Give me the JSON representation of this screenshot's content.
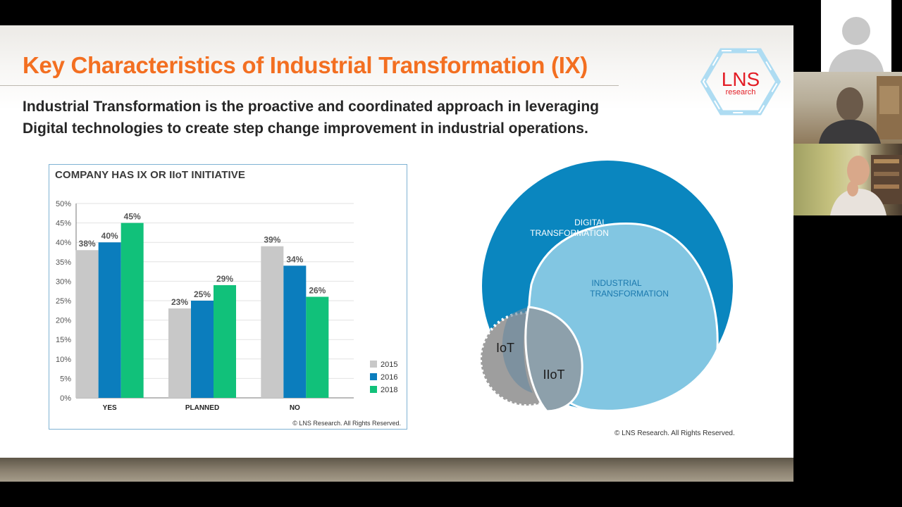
{
  "slide": {
    "title": "Key Characteristics of Industrial Transformation (IX)",
    "subtitle_line1": "Industrial Transformation is the proactive and coordinated approach in leveraging",
    "subtitle_line2": "Digital technologies to create step change improvement in industrial operations.",
    "logo": {
      "name": "LNS",
      "tagline": "research",
      "color": "#e31e26",
      "hex_color": "#aedcf2"
    }
  },
  "chart_data": {
    "type": "bar",
    "title": "COMPANY HAS IX OR IIoT INITIATIVE",
    "categories": [
      "YES",
      "PLANNED",
      "NO"
    ],
    "series": [
      {
        "name": "2015",
        "color": "#c8c8c8",
        "values": [
          38,
          23,
          39
        ],
        "labels": [
          "38%",
          "23%",
          "39%"
        ]
      },
      {
        "name": "2016",
        "color": "#0b7dbd",
        "values": [
          40,
          25,
          34
        ],
        "labels": [
          "40%",
          "25%",
          "34%"
        ]
      },
      {
        "name": "2018",
        "color": "#11c17a",
        "values": [
          45,
          29,
          26
        ],
        "labels": [
          "45%",
          "29%",
          "26%"
        ]
      }
    ],
    "ylim": [
      0,
      50
    ],
    "yticks": [
      "0%",
      "5%",
      "10%",
      "15%",
      "20%",
      "25%",
      "30%",
      "35%",
      "40%",
      "45%",
      "50%"
    ],
    "legend": "right",
    "grid": true,
    "copyright": "© LNS Research. All Rights Reserved."
  },
  "venn": {
    "outer_line1": "DIGITAL",
    "outer_line2": "TRANSFORMATION",
    "inner_line1": "INDUSTRIAL",
    "inner_line2": "TRANSFORMATION",
    "iot": "IoT",
    "iiot": "IIoT",
    "colors": {
      "outer": "#0a86bf",
      "inner": "#82c6e2",
      "iot": "#9a9a9a",
      "iiot": "#8da0ab"
    },
    "copyright": "© LNS Research. All Rights Reserved."
  }
}
